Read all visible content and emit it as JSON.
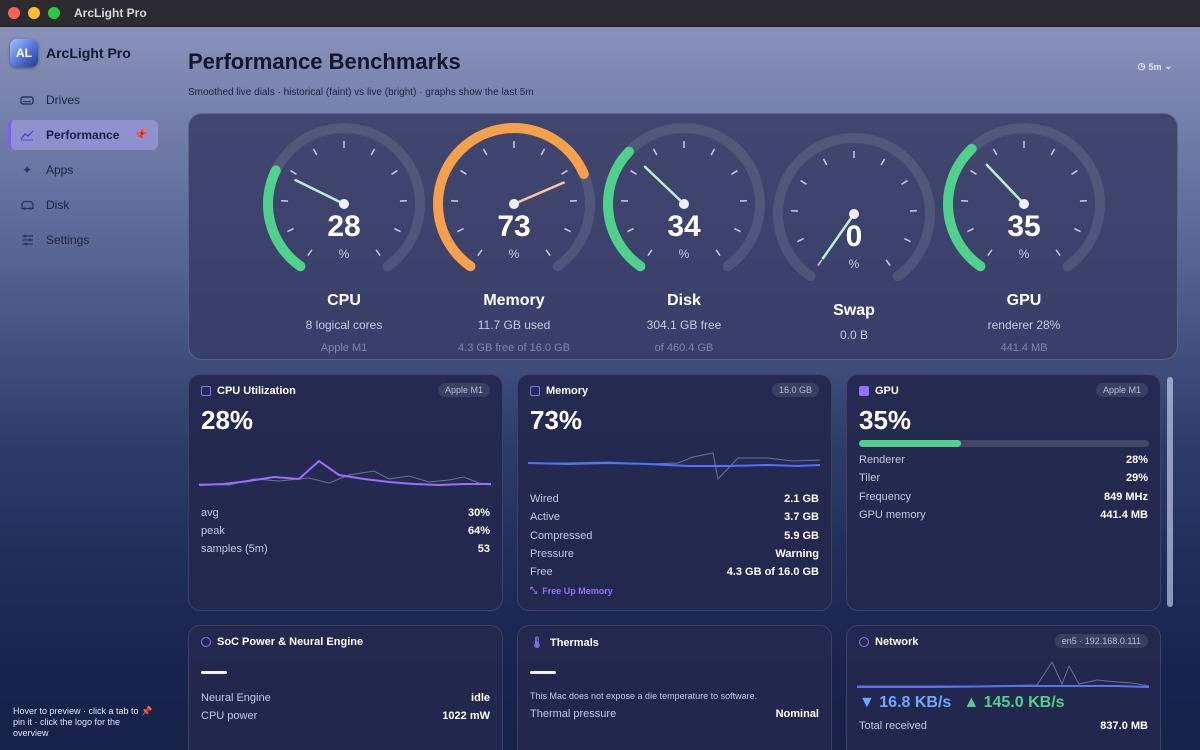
{
  "window": {
    "title": "ArcLight Pro"
  },
  "brand": {
    "name": "ArcLight Pro",
    "logo_text": "AL"
  },
  "sidebar": {
    "items": [
      {
        "label": "Drives",
        "icon": "drive-icon"
      },
      {
        "label": "Performance",
        "icon": "chart-icon",
        "active": true,
        "pinned": true
      },
      {
        "label": "Apps",
        "icon": "sparkle-icon"
      },
      {
        "label": "Disk",
        "icon": "disk-icon"
      },
      {
        "label": "Settings",
        "icon": "sliders-icon"
      }
    ],
    "hint": "Hover to preview · click a tab to 📌 pin it · click the logo for the overview"
  },
  "header": {
    "title": "Performance Benchmarks",
    "subtitle": "Smoothed live dials · historical (faint) vs live (bright) · graphs show the last 5m",
    "range": "5m"
  },
  "dials": [
    {
      "name": "CPU",
      "value": 28,
      "unit": "%",
      "line1": "8 logical cores",
      "line2": "Apple M1",
      "color": "#4fd18b"
    },
    {
      "name": "Memory",
      "value": 73,
      "unit": "%",
      "line1": "11.7 GB used",
      "line2": "4.3 GB free of 16.0 GB",
      "color": "#f5a04a"
    },
    {
      "name": "Disk",
      "value": 34,
      "unit": "%",
      "line1": "304.1 GB free",
      "line2": "of 460.4 GB",
      "color": "#4fd18b"
    },
    {
      "name": "Swap",
      "value": 0,
      "unit": "%",
      "line1": "0.0 B",
      "line2": "",
      "color": "#4fd18b"
    },
    {
      "name": "GPU",
      "value": 35,
      "unit": "%",
      "line1": "renderer 28%",
      "line2": "441.4 MB",
      "color": "#4fd18b"
    }
  ],
  "cpu_card": {
    "title": "CPU Utilization",
    "chip": "Apple M1",
    "value": "28%",
    "rows": [
      {
        "label": "avg",
        "value": "30%"
      },
      {
        "label": "peak",
        "value": "64%"
      },
      {
        "label": "samples (5m)",
        "value": "53"
      }
    ]
  },
  "memory_card": {
    "title": "Memory",
    "chip": "16.0 GB",
    "value": "73%",
    "rows": [
      {
        "label": "Wired",
        "value": "2.1 GB"
      },
      {
        "label": "Active",
        "value": "3.7 GB"
      },
      {
        "label": "Compressed",
        "value": "5.9 GB"
      },
      {
        "label": "Pressure",
        "value": "Warning"
      },
      {
        "label": "Free",
        "value": "4.3 GB of 16.0 GB"
      }
    ],
    "action": "Free Up Memory"
  },
  "gpu_card": {
    "title": "GPU",
    "chip": "Apple M1",
    "value": "35%",
    "bar_fraction": 0.35,
    "rows": [
      {
        "label": "Renderer",
        "value": "28%"
      },
      {
        "label": "Tiler",
        "value": "29%"
      },
      {
        "label": "Frequency",
        "value": "849 MHz"
      },
      {
        "label": "GPU memory",
        "value": "441.4 MB"
      }
    ]
  },
  "power_card": {
    "title": "SoC Power & Neural Engine",
    "rows": [
      {
        "label": "Neural Engine",
        "value": "idle"
      },
      {
        "label": "CPU power",
        "value": "1022 mW"
      }
    ]
  },
  "thermals_card": {
    "title": "Thermals",
    "note": "This Mac does not expose a die temperature to software.",
    "rows": [
      {
        "label": "Thermal pressure",
        "value": "Nominal"
      }
    ]
  },
  "network_card": {
    "title": "Network",
    "chip": "en5 · 192.168.0.111",
    "down": "▼ 16.8 KB/s",
    "up": "▲ 145.0 KB/s",
    "rows": [
      {
        "label": "Total received",
        "value": "837.0 MB"
      }
    ]
  }
}
